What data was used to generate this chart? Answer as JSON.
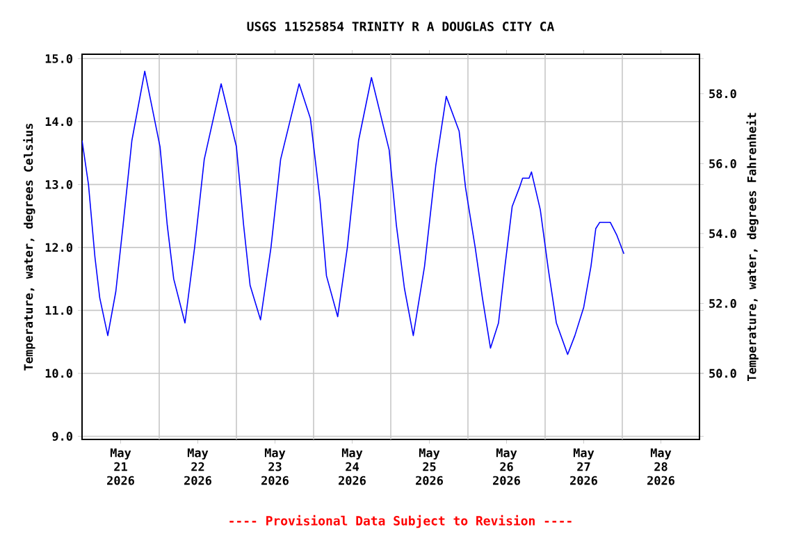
{
  "chart_data": {
    "type": "line",
    "title": "USGS 11525854 TRINITY R A DOUGLAS CITY CA",
    "ylabel": "Temperature, water, degrees Celsius",
    "y2label": "Temperature, water, degrees Fahrenheit",
    "annotations": [
      "---- Provisional Data Subject to Revision ----"
    ],
    "x": [
      "2026-05-21T00:00",
      "2026-05-21T02:00",
      "2026-05-21T04:00",
      "2026-05-21T05:30",
      "2026-05-21T08:00",
      "2026-05-21T10:30",
      "2026-05-21T12:45",
      "2026-05-21T15:30",
      "2026-05-21T19:30",
      "2026-05-22T00:15",
      "2026-05-22T02:30",
      "2026-05-22T04:30",
      "2026-05-22T08:00",
      "2026-05-22T11:00",
      "2026-05-22T14:00",
      "2026-05-22T19:15",
      "2026-05-23T00:00",
      "2026-05-23T02:15",
      "2026-05-23T04:15",
      "2026-05-23T07:30",
      "2026-05-23T10:45",
      "2026-05-23T13:45",
      "2026-05-23T19:30",
      "2026-05-23T23:00",
      "2026-05-24T02:00",
      "2026-05-24T04:00",
      "2026-05-24T07:30",
      "2026-05-24T10:30",
      "2026-05-24T14:00",
      "2026-05-24T18:00",
      "2026-05-24T23:30",
      "2026-05-25T01:45",
      "2026-05-25T04:15",
      "2026-05-25T07:00",
      "2026-05-25T10:30",
      "2026-05-25T14:00",
      "2026-05-25T17:15",
      "2026-05-25T21:15",
      "2026-05-25T23:15",
      "2026-05-26T02:15",
      "2026-05-26T04:30",
      "2026-05-26T07:00",
      "2026-05-26T09:30",
      "2026-05-26T11:30",
      "2026-05-26T13:45",
      "2026-05-26T16:00",
      "2026-05-26T17:00",
      "2026-05-26T19:00",
      "2026-05-26T19:45",
      "2026-05-26T22:30",
      "2026-05-27T01:00",
      "2026-05-27T03:30",
      "2026-05-27T07:00",
      "2026-05-27T09:15",
      "2026-05-27T12:00",
      "2026-05-27T14:15",
      "2026-05-27T15:45",
      "2026-05-27T17:00",
      "2026-05-27T20:15",
      "2026-05-27T22:15",
      "2026-05-28T00:30"
    ],
    "series": [
      {
        "color": "#0000ff",
        "values": [
          13.7,
          13.0,
          11.85,
          11.2,
          10.6,
          11.3,
          12.35,
          13.7,
          14.8,
          13.6,
          12.35,
          11.5,
          10.8,
          12.0,
          13.4,
          14.6,
          13.6,
          12.35,
          11.4,
          10.85,
          12.0,
          13.4,
          14.6,
          14.05,
          12.75,
          11.55,
          10.9,
          12.0,
          13.7,
          14.7,
          13.55,
          12.35,
          11.35,
          10.6,
          11.7,
          13.3,
          14.4,
          13.85,
          12.95,
          12.0,
          11.2,
          10.4,
          10.8,
          11.7,
          12.65,
          12.95,
          13.1,
          13.1,
          13.2,
          12.6,
          11.65,
          10.8,
          10.3,
          10.6,
          11.05,
          11.7,
          12.3,
          12.4,
          12.4,
          12.2,
          11.9
        ]
      }
    ],
    "xlim": [
      "2026-05-21T00:00",
      "2026-05-29T00:00"
    ],
    "xticks": [
      {
        "value": "2026-05-21T12:00",
        "label": "May 21 2026"
      },
      {
        "value": "2026-05-22T00:00",
        "label": null
      },
      {
        "value": "2026-05-22T12:00",
        "label": "May 22 2026"
      },
      {
        "value": "2026-05-23T00:00",
        "label": null
      },
      {
        "value": "2026-05-23T12:00",
        "label": "May 23 2026"
      },
      {
        "value": "2026-05-24T00:00",
        "label": null
      },
      {
        "value": "2026-05-24T12:00",
        "label": "May 24 2026"
      },
      {
        "value": "2026-05-25T00:00",
        "label": null
      },
      {
        "value": "2026-05-25T12:00",
        "label": "May 25 2026"
      },
      {
        "value": "2026-05-26T00:00",
        "label": null
      },
      {
        "value": "2026-05-26T12:00",
        "label": "May 26 2026"
      },
      {
        "value": "2026-05-27T00:00",
        "label": null
      },
      {
        "value": "2026-05-27T12:00",
        "label": "May 27 2026"
      },
      {
        "value": "2026-05-28T00:00",
        "label": null
      },
      {
        "value": "2026-05-28T12:00",
        "label": "May 28 2026"
      }
    ],
    "ylim": [
      8.95,
      15.07
    ],
    "yticks": [
      {
        "value": 9,
        "label": "9.0"
      },
      {
        "value": 10,
        "label": "10.0"
      },
      {
        "value": 11,
        "label": "11.0"
      },
      {
        "value": 12,
        "label": "12.0"
      },
      {
        "value": 13,
        "label": "13.0"
      },
      {
        "value": 14,
        "label": "14.0"
      },
      {
        "value": 15,
        "label": "15.0"
      }
    ],
    "y2lim": [
      48.11,
      59.13
    ],
    "y2ticks": [
      {
        "value": 50,
        "label": "50.0"
      },
      {
        "value": 52,
        "label": "52.0"
      },
      {
        "value": 54,
        "label": "54.0"
      },
      {
        "value": 56,
        "label": "56.0"
      },
      {
        "value": 58,
        "label": "58.0"
      }
    ],
    "grid": true
  }
}
